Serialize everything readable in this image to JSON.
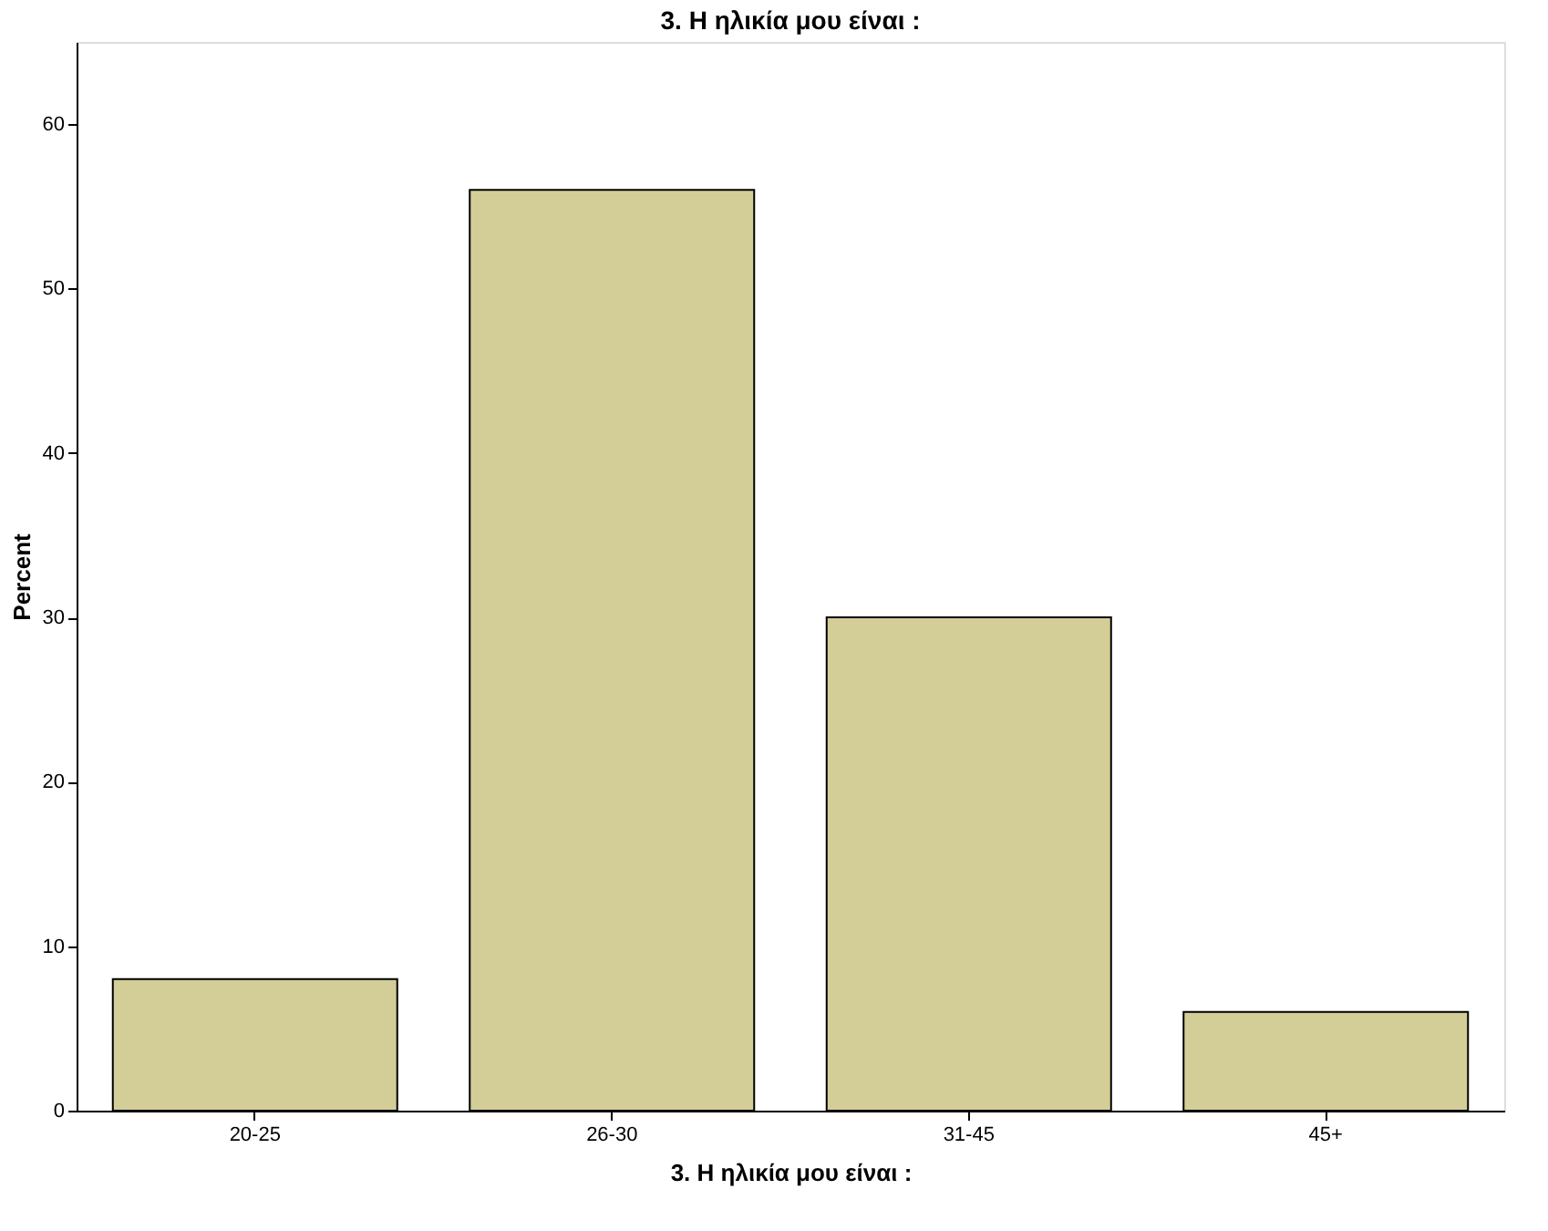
{
  "chart_data": {
    "type": "bar",
    "title": "3. Η ηλικία μου είναι :",
    "xlabel": "3. Η ηλικία μου είναι :",
    "ylabel": "Percent",
    "categories": [
      "20-25",
      "26-30",
      "31-45",
      "45+"
    ],
    "values": [
      8,
      56,
      30,
      6
    ],
    "color": "#d3ce97",
    "ylim": [
      0,
      65
    ],
    "yticks": [
      0,
      10,
      20,
      30,
      40,
      50,
      60
    ],
    "grid": false
  }
}
